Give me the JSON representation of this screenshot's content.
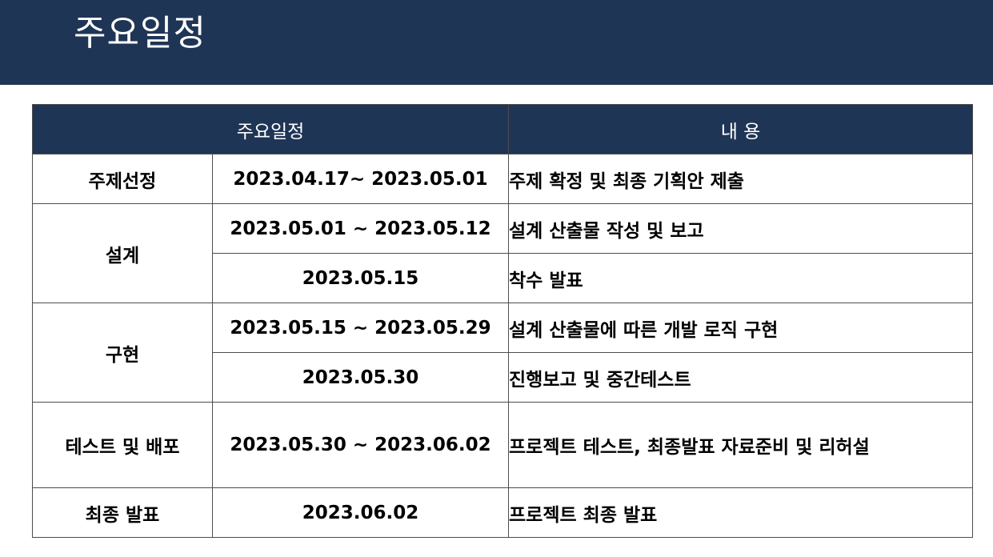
{
  "header": {
    "title": "주요일정"
  },
  "table": {
    "columns": {
      "schedule": "주요일정",
      "content": "내 용"
    },
    "rows": [
      {
        "phase": "주제선정",
        "items": [
          {
            "date": "2023.04.17~ 2023.05.01",
            "desc": "주제 확정 및 최종 기획안 제출"
          }
        ]
      },
      {
        "phase": "설계",
        "items": [
          {
            "date": "2023.05.01 ~ 2023.05.12",
            "desc": "설계 산출물 작성 및 보고"
          },
          {
            "date": "2023.05.15",
            "desc": "착수 발표"
          }
        ]
      },
      {
        "phase": "구현",
        "items": [
          {
            "date": "2023.05.15 ~ 2023.05.29",
            "desc": "설계 산출물에 따른 개발 로직 구현"
          },
          {
            "date": "2023.05.30",
            "desc": "진행보고 및 중간테스트"
          }
        ]
      },
      {
        "phase": "테스트 및 배포",
        "items": [
          {
            "date": "2023.05.30 ~ 2023.06.02",
            "desc": "프로젝트 테스트, 최종발표 자료준비 및 리허설"
          }
        ]
      },
      {
        "phase": "최종 발표",
        "items": [
          {
            "date": "2023.06.02",
            "desc": "프로젝트 최종 발표"
          }
        ]
      }
    ]
  }
}
